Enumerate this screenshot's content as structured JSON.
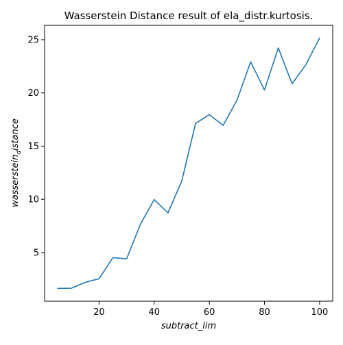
{
  "chart_data": {
    "type": "line",
    "title": "Wasserstein Distance result of ela_distr.kurtosis.",
    "xlabel": "subtract_lim",
    "ylabel": "wasserstein_distance",
    "ylabel_main": "wasserstein",
    "ylabel_sub": "d",
    "ylabel_rest": "istance",
    "xlim": [
      0.25,
      104.75
    ],
    "ylim": [
      0.43,
      26.35
    ],
    "xticks": [
      20,
      40,
      60,
      80,
      100
    ],
    "yticks": [
      5,
      10,
      15,
      20,
      25
    ],
    "grid": false,
    "x": [
      5,
      10,
      15,
      20,
      25,
      30,
      35,
      40,
      45,
      50,
      55,
      60,
      65,
      70,
      75,
      80,
      85,
      90,
      95,
      100
    ],
    "series": [
      {
        "color": "#1f77b4",
        "values": [
          1.63,
          1.65,
          2.2,
          2.54,
          4.52,
          4.41,
          7.66,
          9.98,
          8.73,
          11.71,
          17.13,
          17.96,
          16.95,
          19.3,
          22.92,
          20.27,
          24.23,
          20.86,
          22.64,
          25.17
        ]
      }
    ]
  }
}
